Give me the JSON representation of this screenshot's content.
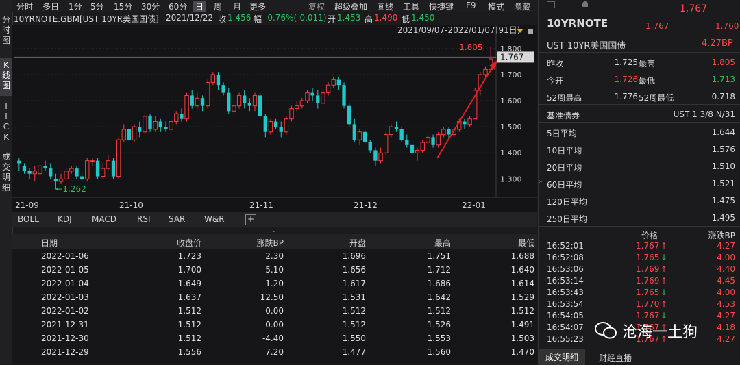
{
  "side_tabs": [
    "分时图",
    "K线图",
    "TICK",
    "成交明细"
  ],
  "toolbar": {
    "items": [
      "分时",
      "多日",
      "1分",
      "5分",
      "15分",
      "30分",
      "60分",
      "日",
      "周",
      "月",
      "更多",
      "复权",
      "超级叠加",
      "画线",
      "工具",
      "快捷键",
      "F9",
      "模式",
      "隐藏"
    ],
    "active": "日"
  },
  "info": {
    "name": "10YRNOTE.GBM[UST 10YR美国国债]",
    "date": "2021/12/22",
    "close_label": "收",
    "close": "1.456",
    "chg_label": "幅",
    "chg": "-0.76%(-0.011)",
    "open_label": "开",
    "open": "1.453",
    "high_label": "高",
    "high": "1.490",
    "low_label": "低",
    "low": "1.450"
  },
  "range_label": "2021/09/07-2022/01/07(91日)",
  "chart_data": {
    "type": "candlestick",
    "y_ticks": [
      "1.800",
      "1.700",
      "1.600",
      "1.500",
      "1.400",
      "1.300"
    ],
    "x_ticks": [
      "21-09",
      "21-10",
      "21-11",
      "21-12",
      "22-01"
    ],
    "current_price": "1.767",
    "max_label": "1.805",
    "min_label": "←1.262",
    "ylim": [
      1.23,
      1.86
    ],
    "candles": [
      [
        1.37,
        1.36,
        1.38,
        1.33
      ],
      [
        1.35,
        1.33,
        1.36,
        1.32
      ],
      [
        1.33,
        1.32,
        1.34,
        1.3
      ],
      [
        1.32,
        1.33,
        1.35,
        1.29
      ],
      [
        1.32,
        1.35,
        1.36,
        1.31
      ],
      [
        1.35,
        1.34,
        1.37,
        1.33
      ],
      [
        1.34,
        1.31,
        1.36,
        1.3
      ],
      [
        1.3,
        1.29,
        1.32,
        1.26
      ],
      [
        1.29,
        1.3,
        1.32,
        1.28
      ],
      [
        1.3,
        1.33,
        1.34,
        1.29
      ],
      [
        1.33,
        1.34,
        1.35,
        1.32
      ],
      [
        1.34,
        1.31,
        1.35,
        1.3
      ],
      [
        1.31,
        1.3,
        1.33,
        1.29
      ],
      [
        1.3,
        1.37,
        1.38,
        1.29
      ],
      [
        1.37,
        1.37,
        1.38,
        1.35
      ],
      [
        1.37,
        1.31,
        1.38,
        1.3
      ],
      [
        1.31,
        1.34,
        1.36,
        1.3
      ],
      [
        1.34,
        1.37,
        1.39,
        1.33
      ],
      [
        1.37,
        1.31,
        1.38,
        1.3
      ],
      [
        1.31,
        1.45,
        1.46,
        1.3
      ],
      [
        1.45,
        1.49,
        1.51,
        1.44
      ],
      [
        1.49,
        1.45,
        1.5,
        1.44
      ],
      [
        1.45,
        1.5,
        1.51,
        1.44
      ],
      [
        1.5,
        1.48,
        1.52,
        1.46
      ],
      [
        1.48,
        1.54,
        1.55,
        1.47
      ],
      [
        1.54,
        1.49,
        1.55,
        1.48
      ],
      [
        1.49,
        1.52,
        1.54,
        1.48
      ],
      [
        1.52,
        1.5,
        1.53,
        1.48
      ],
      [
        1.5,
        1.49,
        1.52,
        1.48
      ],
      [
        1.49,
        1.52,
        1.53,
        1.48
      ],
      [
        1.52,
        1.55,
        1.56,
        1.51
      ],
      [
        1.55,
        1.53,
        1.57,
        1.52
      ],
      [
        1.53,
        1.62,
        1.63,
        1.52
      ],
      [
        1.62,
        1.58,
        1.64,
        1.57
      ],
      [
        1.58,
        1.61,
        1.63,
        1.57
      ],
      [
        1.61,
        1.58,
        1.62,
        1.56
      ],
      [
        1.58,
        1.67,
        1.68,
        1.57
      ],
      [
        1.67,
        1.7,
        1.71,
        1.66
      ],
      [
        1.7,
        1.66,
        1.71,
        1.64
      ],
      [
        1.66,
        1.63,
        1.67,
        1.62
      ],
      [
        1.63,
        1.56,
        1.65,
        1.55
      ],
      [
        1.56,
        1.58,
        1.6,
        1.55
      ],
      [
        1.58,
        1.62,
        1.63,
        1.57
      ],
      [
        1.62,
        1.59,
        1.64,
        1.57
      ],
      [
        1.59,
        1.58,
        1.61,
        1.56
      ],
      [
        1.58,
        1.62,
        1.63,
        1.56
      ],
      [
        1.62,
        1.54,
        1.63,
        1.53
      ],
      [
        1.54,
        1.48,
        1.55,
        1.46
      ],
      [
        1.48,
        1.52,
        1.53,
        1.47
      ],
      [
        1.52,
        1.5,
        1.53,
        1.49
      ],
      [
        1.5,
        1.48,
        1.52,
        1.46
      ],
      [
        1.48,
        1.53,
        1.54,
        1.47
      ],
      [
        1.53,
        1.57,
        1.58,
        1.52
      ],
      [
        1.57,
        1.58,
        1.6,
        1.56
      ],
      [
        1.58,
        1.6,
        1.61,
        1.57
      ],
      [
        1.6,
        1.63,
        1.64,
        1.59
      ],
      [
        1.63,
        1.62,
        1.65,
        1.6
      ],
      [
        1.62,
        1.59,
        1.64,
        1.57
      ],
      [
        1.59,
        1.63,
        1.64,
        1.58
      ],
      [
        1.63,
        1.66,
        1.67,
        1.62
      ],
      [
        1.66,
        1.68,
        1.69,
        1.65
      ],
      [
        1.68,
        1.66,
        1.69,
        1.64
      ],
      [
        1.66,
        1.58,
        1.67,
        1.57
      ],
      [
        1.58,
        1.51,
        1.59,
        1.5
      ],
      [
        1.51,
        1.45,
        1.53,
        1.44
      ],
      [
        1.45,
        1.48,
        1.49,
        1.43
      ],
      [
        1.48,
        1.44,
        1.49,
        1.43
      ],
      [
        1.44,
        1.41,
        1.45,
        1.4
      ],
      [
        1.41,
        1.37,
        1.42,
        1.35
      ],
      [
        1.37,
        1.4,
        1.42,
        1.36
      ],
      [
        1.4,
        1.47,
        1.48,
        1.39
      ],
      [
        1.47,
        1.5,
        1.51,
        1.46
      ],
      [
        1.5,
        1.49,
        1.52,
        1.48
      ],
      [
        1.49,
        1.45,
        1.5,
        1.44
      ],
      [
        1.45,
        1.43,
        1.47,
        1.42
      ],
      [
        1.43,
        1.4,
        1.44,
        1.39
      ],
      [
        1.4,
        1.41,
        1.42,
        1.37
      ],
      [
        1.41,
        1.44,
        1.45,
        1.4
      ],
      [
        1.44,
        1.46,
        1.47,
        1.43
      ],
      [
        1.46,
        1.43,
        1.47,
        1.42
      ],
      [
        1.43,
        1.47,
        1.48,
        1.42
      ],
      [
        1.47,
        1.49,
        1.5,
        1.46
      ],
      [
        1.49,
        1.47,
        1.5,
        1.45
      ],
      [
        1.47,
        1.49,
        1.5,
        1.46
      ],
      [
        1.49,
        1.52,
        1.53,
        1.48
      ],
      [
        1.52,
        1.51,
        1.53,
        1.49
      ],
      [
        1.51,
        1.53,
        1.54,
        1.5
      ],
      [
        1.53,
        1.64,
        1.65,
        1.53
      ],
      [
        1.64,
        1.7,
        1.71,
        1.62
      ],
      [
        1.7,
        1.72,
        1.73,
        1.69
      ],
      [
        1.72,
        1.76,
        1.805,
        1.71
      ]
    ]
  },
  "indicator_tabs": [
    "BOLL",
    "KDJ",
    "MACD",
    "RSI",
    "SAR",
    "W&R",
    "+"
  ],
  "table": {
    "headers": [
      "日期",
      "收盘价",
      "涨跌BP",
      "开盘",
      "最高",
      "最低"
    ],
    "rows": [
      [
        "2022-01-06",
        "1.723",
        "2.30",
        "1.696",
        "1.751",
        "1.688"
      ],
      [
        "2022-01-05",
        "1.700",
        "5.10",
        "1.656",
        "1.712",
        "1.640"
      ],
      [
        "2022-01-04",
        "1.649",
        "1.20",
        "1.617",
        "1.686",
        "1.614"
      ],
      [
        "2022-01-03",
        "1.637",
        "12.50",
        "1.531",
        "1.642",
        "1.529"
      ],
      [
        "2022-01-02",
        "1.512",
        "0.00",
        "1.512",
        "1.512",
        "1.512"
      ],
      [
        "2021-12-31",
        "1.512",
        "0.00",
        "1.512",
        "1.526",
        "1.491"
      ],
      [
        "2021-12-30",
        "1.512",
        "-4.40",
        "1.550",
        "1.553",
        "1.503"
      ],
      [
        "2021-12-29",
        "1.556",
        "7.20",
        "1.477",
        "1.560",
        "1.470"
      ]
    ]
  },
  "right": {
    "top_price": "1.767",
    "code": "10YRNOTE",
    "price1": "1.767",
    "price2": "1.760",
    "name": "UST 10YR美国国债",
    "bp": "4.27BP",
    "stats": [
      {
        "l1": "昨收",
        "v1": "1.725",
        "c1": "w",
        "l2": "最高",
        "v2": "1.805",
        "c2": "r"
      },
      {
        "l1": "今开",
        "v1": "1.726",
        "c1": "r",
        "l2": "最低",
        "v2": "1.713",
        "c2": "g"
      },
      {
        "l1": "52周最高",
        "v1": "1.776",
        "c1": "w",
        "l2": "52周最低",
        "v2": "0.718",
        "c2": "w"
      }
    ],
    "bond_label": "基准债券",
    "bond_value": "UST 1 3/8 N/31",
    "averages": [
      {
        "label": "5日平均",
        "value": "1.644"
      },
      {
        "label": "10日平均",
        "value": "1.576"
      },
      {
        "label": "20日平均",
        "value": "1.510"
      },
      {
        "label": "60日平均",
        "value": "1.521"
      },
      {
        "label": "120日平均",
        "value": "1.475"
      },
      {
        "label": "250日平均",
        "value": "1.495"
      }
    ],
    "tick_headers": [
      "价格",
      "涨跌BP"
    ],
    "ticks": [
      {
        "time": "16:52:01",
        "price": "1.767",
        "dir": "up",
        "chg": "4.27"
      },
      {
        "time": "16:52:08",
        "price": "1.765",
        "dir": "down",
        "chg": "4.00"
      },
      {
        "time": "16:53:06",
        "price": "1.769",
        "dir": "up",
        "chg": "4.40"
      },
      {
        "time": "16:53:14",
        "price": "1.769",
        "dir": "up",
        "chg": "4.45"
      },
      {
        "time": "16:53:43",
        "price": "1.765",
        "dir": "down",
        "chg": "4.00"
      },
      {
        "time": "16:53:54",
        "price": "1.770",
        "dir": "up",
        "chg": "4.53"
      },
      {
        "time": "16:54:05",
        "price": "1.767",
        "dir": "down",
        "chg": "4.27"
      },
      {
        "time": "16:54:07",
        "price": "1.767",
        "dir": "up",
        "chg": "4.18"
      },
      {
        "time": "16:55:23",
        "price": "1.767",
        "dir": "up",
        "chg": "4.27"
      }
    ],
    "bottom_tabs": [
      "成交明细",
      "财经直播"
    ]
  },
  "watermark": "沧海一土狗",
  "colors": {
    "up": "#ff3b3b",
    "down": "#22c8c8",
    "accent_green": "#2ec05a"
  }
}
